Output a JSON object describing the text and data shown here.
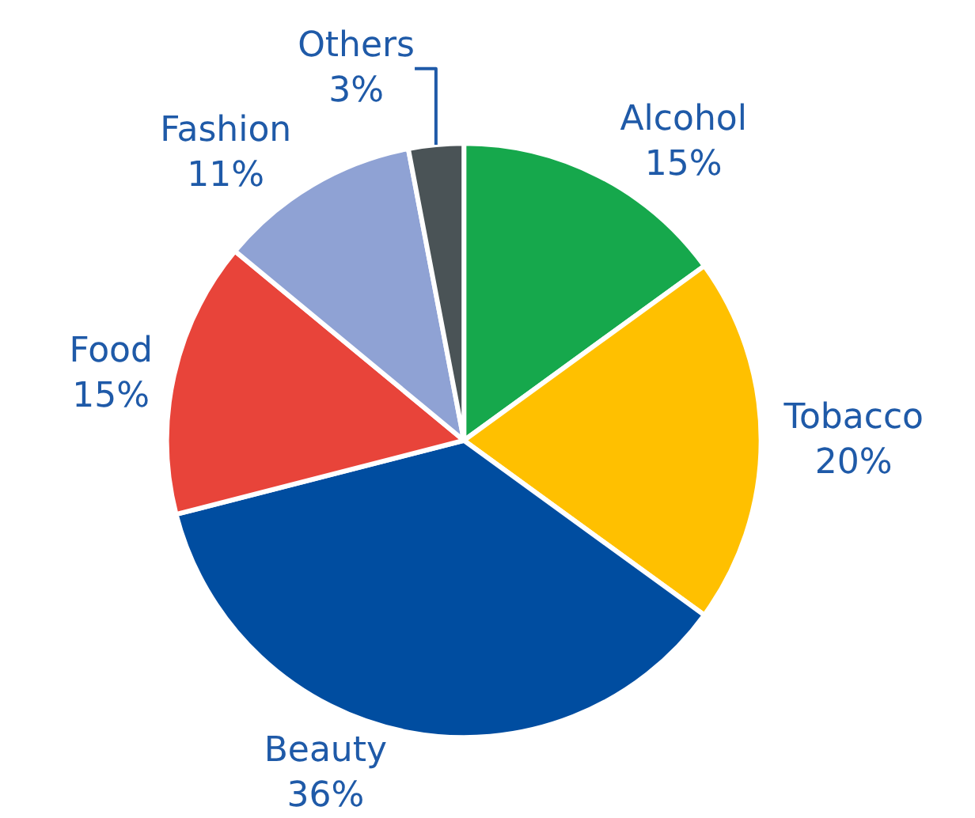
{
  "chart_data": {
    "type": "pie",
    "categories": [
      "Alcohol",
      "Tobacco",
      "Beauty",
      "Food",
      "Fashion",
      "Others"
    ],
    "values": [
      15,
      20,
      36,
      15,
      11,
      3
    ],
    "value_labels": [
      "15%",
      "20%",
      "36%",
      "15%",
      "11%",
      "3%"
    ],
    "colors": [
      "#16a84c",
      "#ffc000",
      "#004da0",
      "#e8443a",
      "#8fa2d4",
      "#4a5356"
    ],
    "legend": false
  }
}
